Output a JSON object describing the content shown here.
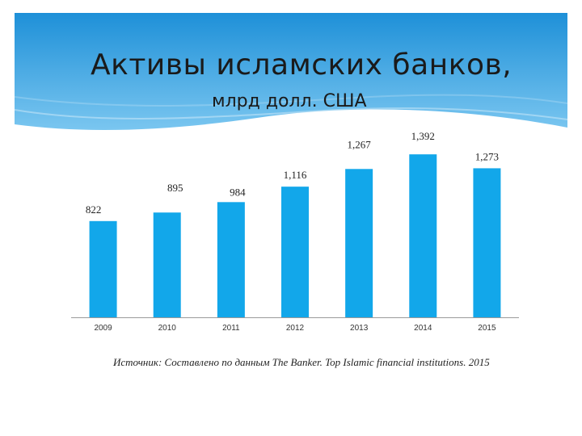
{
  "slide": {
    "title": "Активы исламских банков,",
    "subtitle": "млрд долл. США",
    "source": "Источник: Составлено по данным The Banker. Top Islamic financial  institutions. 2015"
  },
  "colors": {
    "header_top": "#1e90d8",
    "header_bottom": "#7ac6f0",
    "bar": "#12a7ea",
    "axis": "#9a9a9a"
  },
  "chart_data": {
    "type": "bar",
    "categories": [
      "2009",
      "2010",
      "2011",
      "2012",
      "2013",
      "2014",
      "2015"
    ],
    "values": [
      822,
      895,
      984,
      1116,
      1267,
      1392,
      1273
    ],
    "value_labels": [
      "822",
      "895",
      "984",
      "1,116",
      "1,267",
      "1,392",
      "1,273"
    ],
    "xlabel": "",
    "ylabel": "",
    "ylim": [
      0,
      1400
    ],
    "grid": false,
    "legend": "none"
  }
}
